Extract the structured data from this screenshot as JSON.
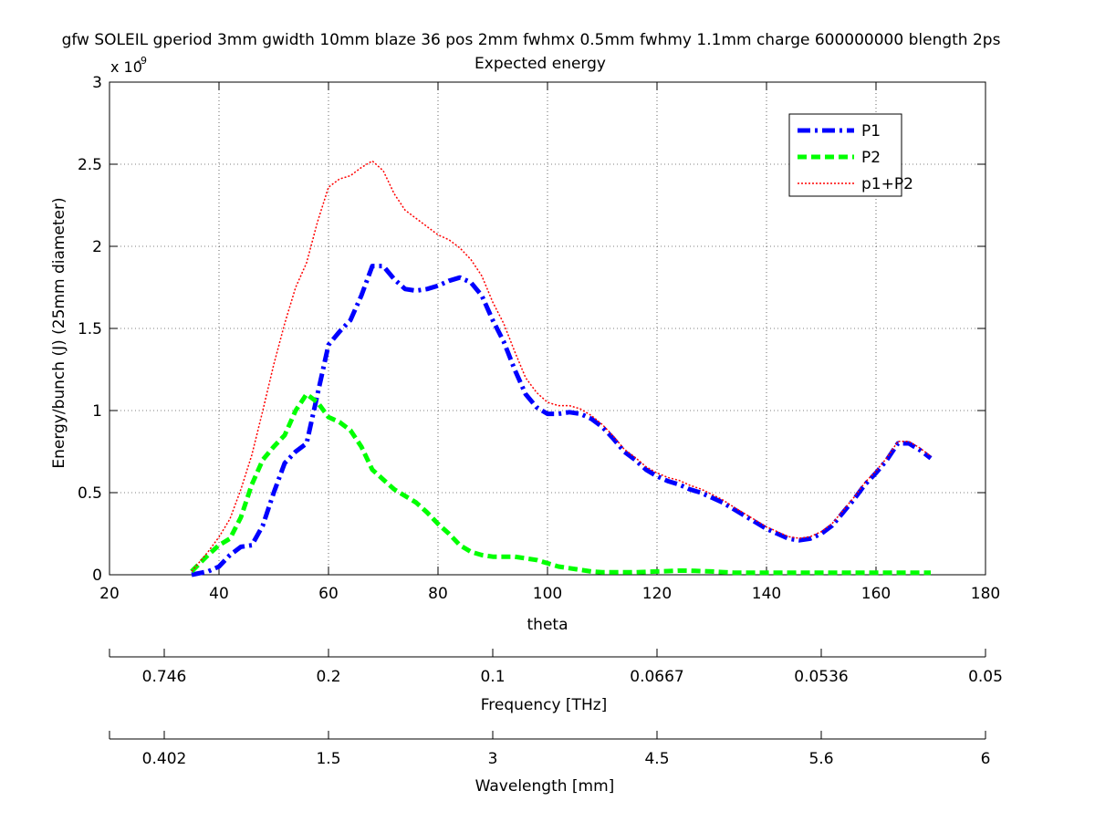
{
  "chart_data": {
    "type": "line",
    "title": "gfw SOLEIL gperiod 3mm gwidth 10mm blaze 36 pos 2mm fwhmx 0.5mm fwhmy 1.1mm charge 600000000 blength 2ps",
    "subtitle": "Expected energy",
    "xlabel": "theta",
    "ylabel": "Energy/bunch (J) (25mm diameter)",
    "y_multiplier": "x 10",
    "y_multiplier_exp": "-9",
    "xlim": [
      20,
      180
    ],
    "ylim": [
      0,
      3
    ],
    "x_ticks": [
      20,
      40,
      60,
      80,
      100,
      120,
      140,
      160,
      180
    ],
    "y_ticks": [
      0,
      0.5,
      1,
      1.5,
      2,
      2.5,
      3
    ],
    "y_tick_labels": [
      "0",
      "0.5",
      "1",
      "1.5",
      "2",
      "2.5",
      "3"
    ],
    "grid": true,
    "legend_position": "top-right",
    "series": [
      {
        "name": "P1",
        "color": "#0000ff",
        "style": "dashdot",
        "x": [
          35,
          38,
          40,
          42,
          44,
          46,
          48,
          50,
          52,
          54,
          56,
          58,
          60,
          62,
          64,
          66,
          68,
          70,
          72,
          74,
          76,
          78,
          80,
          82,
          84,
          86,
          88,
          90,
          92,
          94,
          96,
          98,
          100,
          102,
          104,
          106,
          108,
          110,
          112,
          114,
          116,
          118,
          120,
          122,
          124,
          126,
          128,
          130,
          132,
          134,
          136,
          138,
          140,
          142,
          144,
          146,
          148,
          150,
          152,
          154,
          156,
          158,
          160,
          162,
          164,
          166,
          168,
          170
        ],
        "values": [
          0.0,
          0.02,
          0.05,
          0.12,
          0.17,
          0.18,
          0.3,
          0.5,
          0.68,
          0.75,
          0.8,
          1.1,
          1.4,
          1.48,
          1.55,
          1.7,
          1.88,
          1.88,
          1.8,
          1.74,
          1.73,
          1.74,
          1.76,
          1.79,
          1.81,
          1.78,
          1.7,
          1.55,
          1.42,
          1.25,
          1.1,
          1.02,
          0.98,
          0.98,
          0.99,
          0.98,
          0.95,
          0.9,
          0.83,
          0.75,
          0.7,
          0.64,
          0.6,
          0.57,
          0.55,
          0.52,
          0.5,
          0.47,
          0.44,
          0.4,
          0.36,
          0.32,
          0.28,
          0.25,
          0.22,
          0.21,
          0.22,
          0.25,
          0.3,
          0.38,
          0.46,
          0.55,
          0.62,
          0.7,
          0.8,
          0.8,
          0.76,
          0.71
        ]
      },
      {
        "name": "P2",
        "color": "#00ff00",
        "style": "dashed",
        "x": [
          35,
          38,
          40,
          42,
          44,
          46,
          48,
          50,
          52,
          54,
          56,
          58,
          60,
          62,
          64,
          66,
          68,
          70,
          72,
          74,
          76,
          78,
          80,
          82,
          84,
          86,
          88,
          90,
          92,
          94,
          96,
          98,
          100,
          102,
          104,
          106,
          108,
          110,
          112,
          114,
          116,
          118,
          120,
          122,
          124,
          126,
          128,
          130,
          132,
          134,
          136,
          138,
          140,
          142,
          144,
          146,
          148,
          150,
          152,
          154,
          156,
          158,
          160,
          162,
          164,
          166,
          168,
          170
        ],
        "values": [
          0.02,
          0.12,
          0.18,
          0.22,
          0.35,
          0.55,
          0.7,
          0.78,
          0.85,
          1.0,
          1.1,
          1.05,
          0.96,
          0.93,
          0.88,
          0.78,
          0.64,
          0.58,
          0.52,
          0.48,
          0.44,
          0.38,
          0.31,
          0.25,
          0.18,
          0.14,
          0.12,
          0.11,
          0.11,
          0.11,
          0.1,
          0.09,
          0.07,
          0.05,
          0.04,
          0.03,
          0.02,
          0.015,
          0.015,
          0.015,
          0.015,
          0.018,
          0.02,
          0.022,
          0.025,
          0.025,
          0.022,
          0.02,
          0.016,
          0.013,
          0.012,
          0.012,
          0.012,
          0.012,
          0.012,
          0.012,
          0.012,
          0.012,
          0.012,
          0.012,
          0.012,
          0.012,
          0.012,
          0.012,
          0.012,
          0.012,
          0.012,
          0.012
        ]
      },
      {
        "name": "p1+P2",
        "color": "#ff0000",
        "style": "dotted",
        "x": [
          35,
          38,
          40,
          42,
          44,
          46,
          48,
          50,
          52,
          54,
          56,
          58,
          60,
          62,
          64,
          66,
          68,
          70,
          72,
          74,
          76,
          78,
          80,
          82,
          84,
          86,
          88,
          90,
          92,
          94,
          96,
          98,
          100,
          102,
          104,
          106,
          108,
          110,
          112,
          114,
          116,
          118,
          120,
          122,
          124,
          126,
          128,
          130,
          132,
          134,
          136,
          138,
          140,
          142,
          144,
          146,
          148,
          150,
          152,
          154,
          156,
          158,
          160,
          162,
          164,
          166,
          168,
          170
        ],
        "values": [
          0.02,
          0.14,
          0.23,
          0.34,
          0.52,
          0.73,
          1.0,
          1.28,
          1.53,
          1.75,
          1.9,
          2.15,
          2.36,
          2.41,
          2.43,
          2.48,
          2.52,
          2.46,
          2.32,
          2.22,
          2.17,
          2.12,
          2.07,
          2.04,
          1.99,
          1.92,
          1.82,
          1.66,
          1.53,
          1.36,
          1.2,
          1.11,
          1.05,
          1.03,
          1.03,
          1.01,
          0.97,
          0.915,
          0.845,
          0.765,
          0.715,
          0.658,
          0.62,
          0.592,
          0.575,
          0.545,
          0.522,
          0.49,
          0.456,
          0.413,
          0.372,
          0.332,
          0.292,
          0.262,
          0.232,
          0.222,
          0.232,
          0.262,
          0.312,
          0.392,
          0.472,
          0.562,
          0.632,
          0.712,
          0.812,
          0.812,
          0.772,
          0.722
        ]
      }
    ],
    "freq_axis": {
      "label": "Frequency [THz]",
      "tick_labels": [
        "0.746",
        "0.2",
        "0.1",
        "0.0667",
        "0.0536",
        "0.05"
      ]
    },
    "wavelength_axis": {
      "label": "Wavelength [mm]",
      "tick_labels": [
        "0.402",
        "1.5",
        "3",
        "4.5",
        "5.6",
        "6"
      ]
    }
  }
}
